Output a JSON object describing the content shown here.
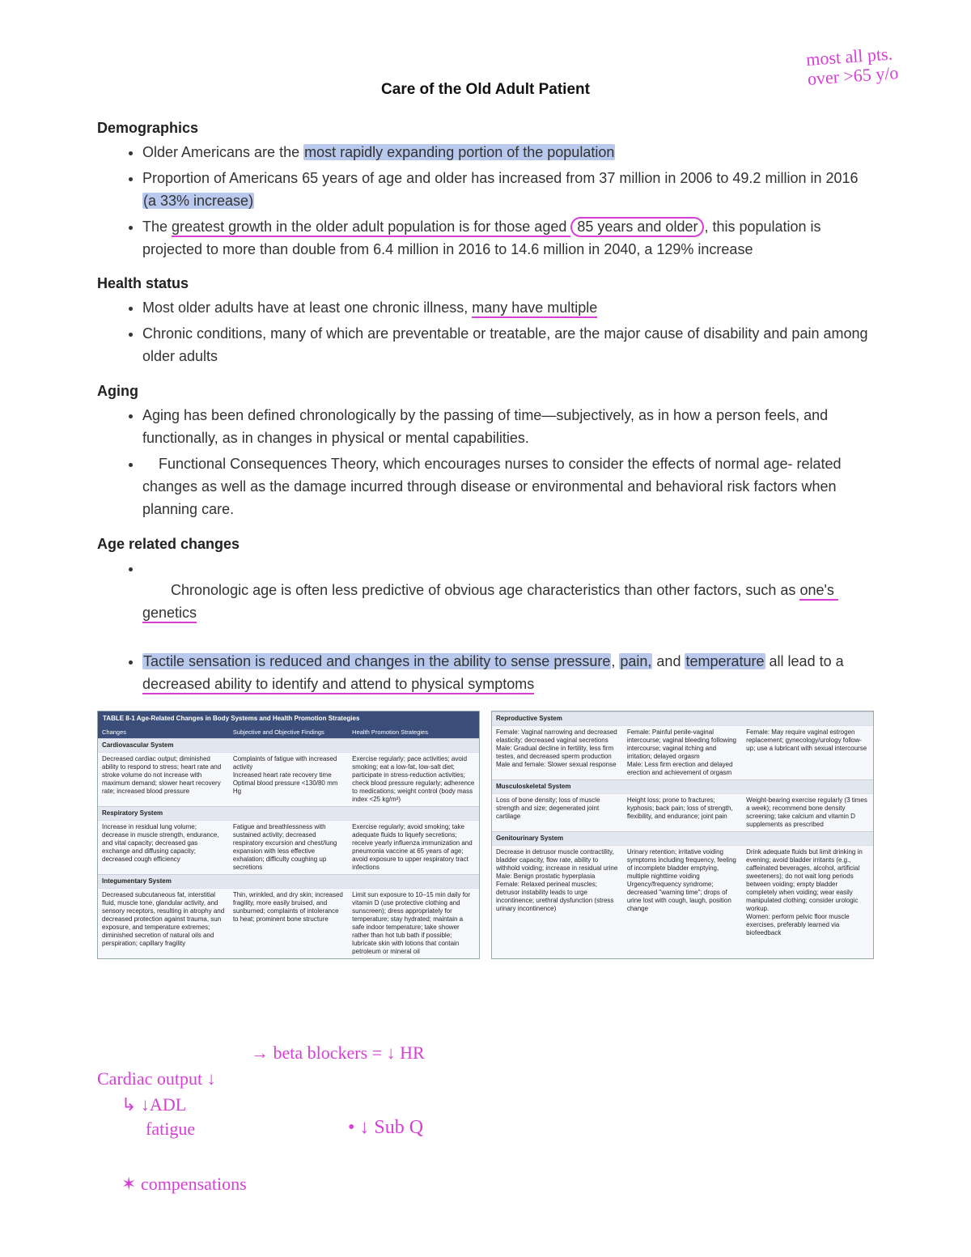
{
  "colors": {
    "highlight_blue": "#b9c8ed",
    "underline_pink": "#d63fd6",
    "table_header_bg": "#3b4e7a",
    "table_header_text": "#ffffff",
    "table_subhead_bg": "#e3e7ef",
    "body_text": "#333333",
    "page_bg": "#ffffff"
  },
  "title": "Care of the Old Adult Patient",
  "handnotes": {
    "top_right": "most all pts.\nover >65 y/o",
    "bottom": [
      "→ beta blockers = ↓ HR",
      "Cardiac output ↓",
      "↳ ↓ADL",
      "fatigue",
      "• ↓ Sub Q",
      "✶ compensations"
    ]
  },
  "sections": {
    "demographics": {
      "head": "Demographics",
      "b1a": "Older Americans are the ",
      "b1b": "most rapidly expanding portion of the population",
      "b2a": "Proportion of Americans 65 years of age and older has increased from 37 million in 2006 to 49.2 million in 2016 ",
      "b2b": "(a 33% increase)",
      "b3a": "The ",
      "b3b": "greatest growth in the older adult population is for those aged ",
      "b3c": "85 years and older",
      "b3d": ", this population is projected to more than double from 6.4 million in 2016 to 14.6 million in 2040, a 129% increase"
    },
    "health": {
      "head": "Health status",
      "b1a": "Most older adults have at least one chronic illness, ",
      "b1b": "many have multiple",
      "b2": "Chronic conditions, many of which are preventable or treatable, are the major cause of disability and pain among older adults"
    },
    "aging": {
      "head": "Aging",
      "b1": "Aging has been defined chronologically by the passing of time—subjectively, as in how a person feels, and functionally, as in changes in physical or mental capabilities.",
      "b2": "    Functional Consequences Theory, which encourages nurses to consider the effects of normal age- related changes as well as the damage incurred through disease or environmental and behavioral risk factors when planning care."
    },
    "changes": {
      "head": "Age related changes",
      "b1a": "   Chronologic age is often less predictive of obvious age characteristics than other factors, such as ",
      "b1b": "one's genetics",
      "b2a": "Tactile sensation is reduced and changes in the ability to sense pressure",
      "b2b": ", ",
      "b2c": "pain,",
      "b2d": " and ",
      "b2e": "temperature",
      "b2f": " all lead to a ",
      "b2g": "decreased ability to identify and attend to physical symptoms"
    }
  },
  "table_left": {
    "title": "TABLE 8-1   Age-Related Changes in Body Systems and Health Promotion Strategies",
    "cols": [
      "Changes",
      "Subjective and Objective Findings",
      "Health Promotion Strategies"
    ],
    "systems": [
      {
        "name": "Cardiovascular System",
        "rows": [
          [
            "Decreased cardiac output; diminished ability to respond to stress; heart rate and stroke volume do not increase with maximum demand; slower heart recovery rate; increased blood pressure",
            "Complaints of fatigue with increased activity\nIncreased heart rate recovery time\nOptimal blood pressure <130/80 mm Hg",
            "Exercise regularly; pace activities; avoid smoking; eat a low-fat, low-salt diet; participate in stress-reduction activities; check blood pressure regularly; adherence to medications; weight control (body mass index <25 kg/m²)"
          ]
        ]
      },
      {
        "name": "Respiratory System",
        "rows": [
          [
            "Increase in residual lung volume; decrease in muscle strength, endurance, and vital capacity; decreased gas exchange and diffusing capacity; decreased cough efficiency",
            "Fatigue and breathlessness with sustained activity; decreased respiratory excursion and chest/lung expansion with less effective exhalation; difficulty coughing up secretions",
            "Exercise regularly; avoid smoking; take adequate fluids to liquefy secretions; receive yearly influenza immunization and pneumonia vaccine at 65 years of age; avoid exposure to upper respiratory tract infections"
          ]
        ]
      },
      {
        "name": "Integumentary System",
        "rows": [
          [
            "Decreased subcutaneous fat, interstitial fluid, muscle tone, glandular activity, and sensory receptors, resulting in atrophy and decreased protection against trauma, sun exposure, and temperature extremes; diminished secretion of natural oils and perspiration; capillary fragility",
            "Thin, wrinkled, and dry skin; increased fragility, more easily bruised, and sunburned; complaints of intolerance to heat; prominent bone structure",
            "Limit sun exposure to 10–15 min daily for vitamin D (use protective clothing and sunscreen); dress appropriately for temperature; stay hydrated; maintain a safe indoor temperature; take shower rather than hot tub bath if possible; lubricate skin with lotions that contain petroleum or mineral oil"
          ]
        ]
      }
    ]
  },
  "table_right": {
    "systems": [
      {
        "name": "Reproductive System",
        "rows": [
          [
            "Female: Vaginal narrowing and decreased elasticity; decreased vaginal secretions\nMale: Gradual decline in fertility, less firm testes, and decreased sperm production\nMale and female: Slower sexual response",
            "Female: Painful penile-vaginal intercourse; vaginal bleeding following intercourse; vaginal itching and irritation; delayed orgasm\nMale: Less firm erection and delayed erection and achievement of orgasm",
            "Female: May require vaginal estrogen replacement; gynecology/urology follow-up; use a lubricant with sexual intercourse"
          ]
        ]
      },
      {
        "name": "Musculoskeletal System",
        "rows": [
          [
            "Loss of bone density; loss of muscle strength and size; degenerated joint cartilage",
            "Height loss; prone to fractures; kyphosis; back pain; loss of strength, flexibility, and endurance; joint pain",
            "Weight-bearing exercise regularly (3 times a week); recommend bone density screening; take calcium and vitamin D supplements as prescribed"
          ]
        ]
      },
      {
        "name": "Genitourinary System",
        "rows": [
          [
            "Decrease in detrusor muscle contractility, bladder capacity, flow rate, ability to withhold voiding; increase in residual urine\nMale: Benign prostatic hyperplasia\nFemale: Relaxed perineal muscles; detrusor instability leads to urge incontinence; urethral dysfunction (stress urinary incontinence)",
            "Urinary retention; irritative voiding symptoms including frequency, feeling of incomplete bladder emptying, multiple nighttime voiding\nUrgency/frequency syndrome; decreased \"warning time\"; drops of urine lost with cough, laugh, position change",
            "Drink adequate fluids but limit drinking in evening; avoid bladder irritants (e.g., caffeinated beverages, alcohol, artificial sweeteners); do not wait long periods between voiding; empty bladder completely when voiding; wear easily manipulated clothing; consider urologic workup.\nWomen: perform pelvic floor muscle exercises, preferably learned via biofeedback"
          ]
        ]
      }
    ]
  }
}
